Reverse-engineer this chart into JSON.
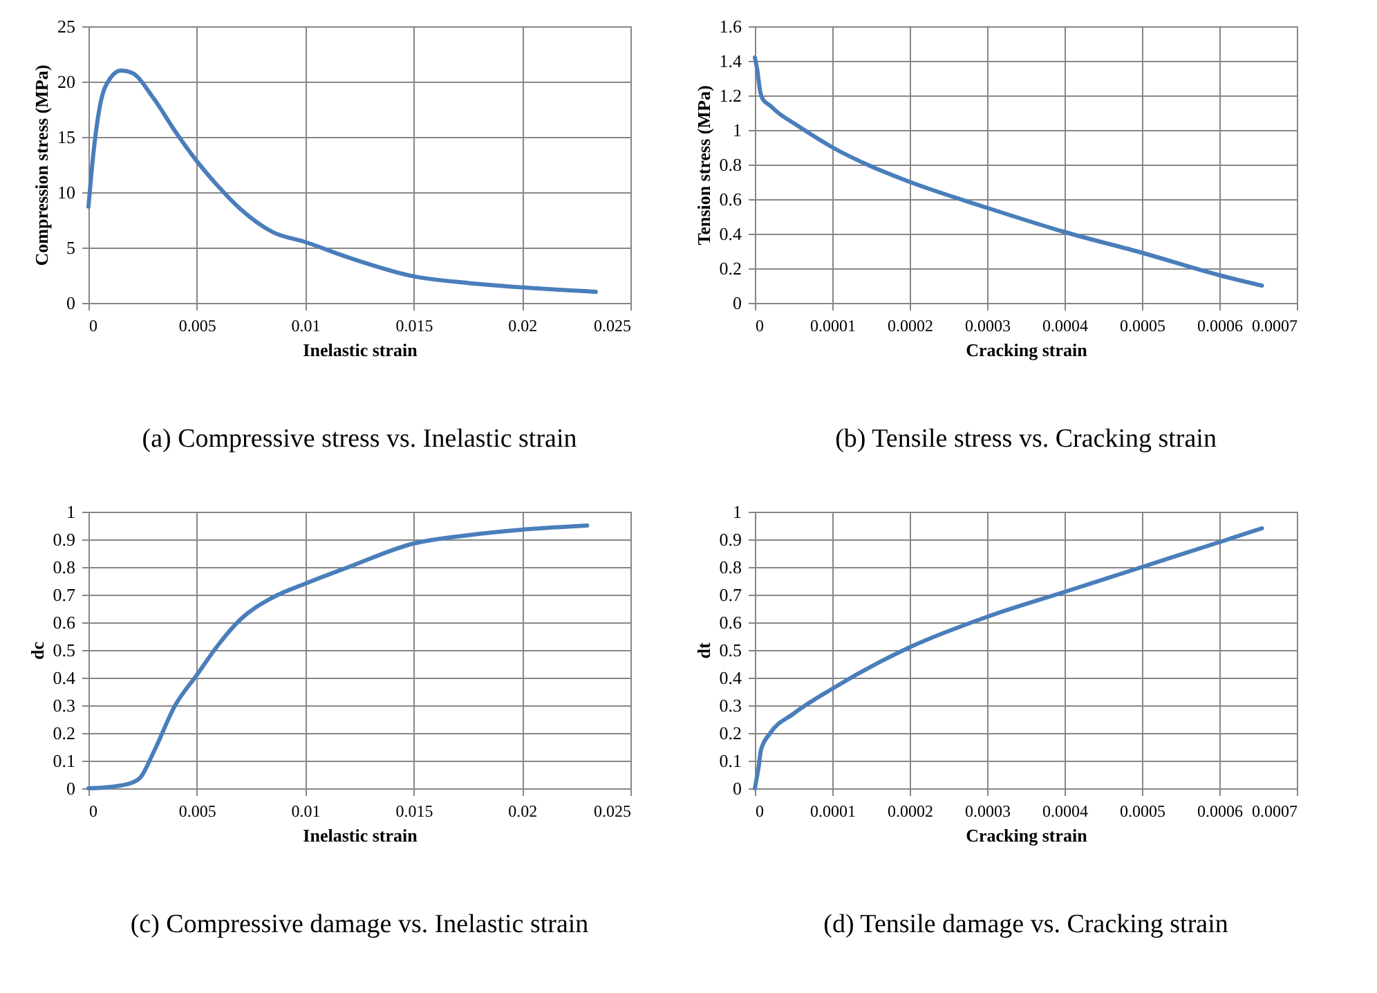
{
  "chart_data": [
    {
      "type": "line",
      "title": "(a)  Compressive stress vs. Inelastic strain",
      "xlabel": "Inelastic strain",
      "ylabel": "Compression stress (MPa)",
      "xlim": [
        0,
        0.025
      ],
      "xticks": [
        0,
        0.005,
        0.01,
        0.015,
        0.02,
        0.025
      ],
      "ylim": [
        0,
        25
      ],
      "yticks": [
        0,
        5,
        10,
        15,
        20,
        25
      ],
      "grid": true,
      "line_style": "solid",
      "x": [
        0,
        0.0002,
        0.0005,
        0.001,
        0.0015,
        0.002,
        0.003,
        0.004,
        0.005,
        0.006,
        0.007,
        0.0085,
        0.01,
        0.012,
        0.015,
        0.0175,
        0.02,
        0.0234
      ],
      "series": [
        {
          "color": "#4a7ebb",
          "values": [
            8.7,
            13,
            17.5,
            20.3,
            21,
            20.8,
            18.5,
            15.5,
            12.8,
            10.5,
            8.5,
            6.4,
            5.5,
            4.1,
            2.4,
            1.8,
            1.4,
            1.0
          ]
        }
      ]
    },
    {
      "type": "line",
      "title": "(b) Tensile stress vs. Cracking strain",
      "xlabel": "Cracking  strain",
      "ylabel": "Tension stress (MPa)",
      "xlim": [
        0,
        0.0007
      ],
      "xticks": [
        0,
        0.0001,
        0.0002,
        0.0003,
        0.0004,
        0.0005,
        0.0006,
        0.0007
      ],
      "ylim": [
        0,
        1.6
      ],
      "yticks": [
        0,
        0.2,
        0.4,
        0.6,
        0.8,
        1,
        1.2,
        1.4,
        1.6
      ],
      "grid": true,
      "line_style": "solid",
      "x": [
        0,
        3e-06,
        7e-06,
        1e-05,
        2e-05,
        3e-05,
        5e-05,
        0.0001,
        0.00015,
        0.0002,
        0.0003,
        0.0004,
        0.0005,
        0.0006,
        0.000655
      ],
      "series": [
        {
          "color": "#4a7ebb",
          "values": [
            1.42,
            1.35,
            1.22,
            1.18,
            1.14,
            1.1,
            1.04,
            0.9,
            0.79,
            0.7,
            0.55,
            0.41,
            0.29,
            0.16,
            0.1
          ]
        }
      ]
    },
    {
      "type": "line",
      "title": "(c)   Compressive damage vs. Inelastic strain",
      "xlabel": "Inelastic strain",
      "ylabel": "dc",
      "xlim": [
        0,
        0.025
      ],
      "xticks": [
        0,
        0.005,
        0.01,
        0.015,
        0.02,
        0.025
      ],
      "ylim": [
        0,
        1
      ],
      "yticks": [
        0,
        0.1,
        0.2,
        0.3,
        0.4,
        0.5,
        0.6,
        0.7,
        0.8,
        0.9,
        1
      ],
      "grid": true,
      "line_style": "solid",
      "x": [
        0,
        0.001,
        0.002,
        0.0024,
        0.003,
        0.004,
        0.005,
        0.006,
        0.007,
        0.0085,
        0.01,
        0.012,
        0.015,
        0.0175,
        0.02,
        0.023
      ],
      "series": [
        {
          "color": "#4a7ebb",
          "values": [
            0,
            0.005,
            0.02,
            0.04,
            0.13,
            0.3,
            0.41,
            0.52,
            0.61,
            0.69,
            0.74,
            0.8,
            0.885,
            0.915,
            0.935,
            0.95
          ]
        }
      ]
    },
    {
      "type": "line",
      "title": "(d) Tensile damage vs. Cracking strain",
      "xlabel": "Cracking  strain",
      "ylabel": "dt",
      "xlim": [
        0,
        0.0007
      ],
      "xticks": [
        0,
        0.0001,
        0.0002,
        0.0003,
        0.0004,
        0.0005,
        0.0006,
        0.0007
      ],
      "ylim": [
        0,
        1
      ],
      "yticks": [
        0,
        0.1,
        0.2,
        0.3,
        0.4,
        0.5,
        0.6,
        0.7,
        0.8,
        0.9,
        1
      ],
      "grid": true,
      "line_style": "solid",
      "x": [
        0,
        5e-06,
        8e-06,
        2e-05,
        5e-05,
        0.0001,
        0.0002,
        0.0003,
        0.0004,
        0.0005,
        0.0006,
        0.000655
      ],
      "series": [
        {
          "color": "#4a7ebb",
          "values": [
            0,
            0.08,
            0.14,
            0.2,
            0.27,
            0.36,
            0.51,
            0.62,
            0.71,
            0.8,
            0.89,
            0.94
          ]
        }
      ]
    }
  ]
}
